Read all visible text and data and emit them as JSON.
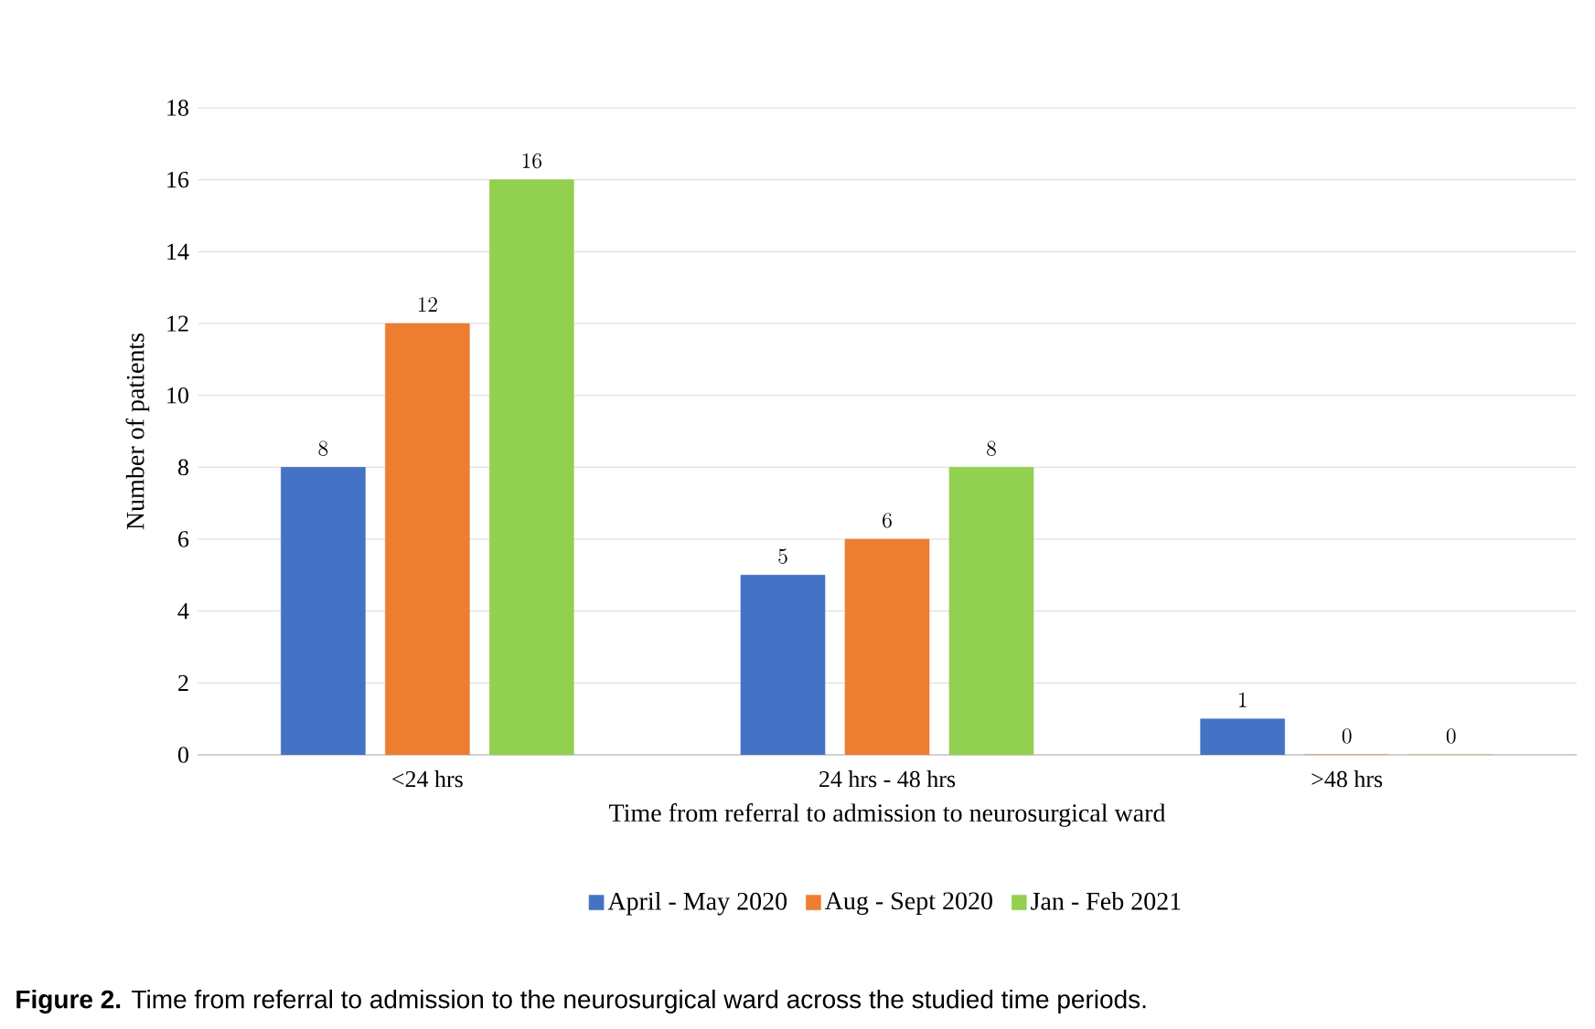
{
  "chart_data": {
    "type": "bar",
    "xlabel": "Time from referral to admission to neurosurgical ward",
    "ylabel": "Number of patients",
    "categories": [
      "<24 hrs",
      "24 hrs - 48 hrs",
      ">48 hrs"
    ],
    "series": [
      {
        "name": "April - May 2020",
        "color": "#4472c4",
        "values": [
          8,
          5,
          1
        ]
      },
      {
        "name": "Aug - Sept 2020",
        "color": "#ed7d31",
        "values": [
          12,
          6,
          0
        ]
      },
      {
        "name": "Jan - Feb 2021",
        "color": "#92d050",
        "values": [
          16,
          8,
          0
        ]
      }
    ],
    "ylim": [
      0,
      18
    ],
    "yticks": [
      0,
      2,
      4,
      6,
      8,
      10,
      12,
      14,
      16,
      18
    ],
    "grid": "y",
    "legend": "bottom",
    "data_labels": true,
    "annotations": [
      "**Figure 2.** Time from referral to admission to the neurosurgical ward across the studied time periods."
    ]
  }
}
